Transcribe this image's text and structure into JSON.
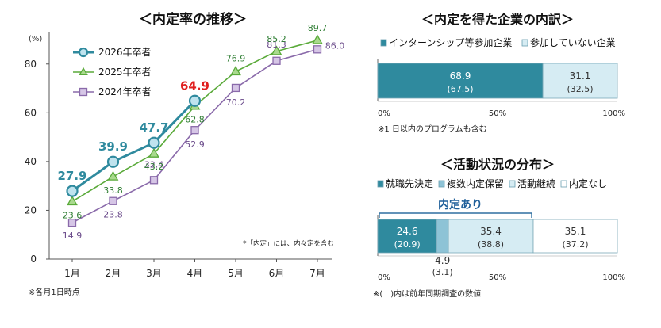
{
  "chart_data": [
    {
      "type": "line",
      "title": "＜内定率の推移＞",
      "y_unit": "(%)",
      "ylim": [
        0,
        90
      ],
      "yticks": [
        0,
        20,
        40,
        60,
        80
      ],
      "grid": false,
      "legend_position": "top-left",
      "categories": [
        "1月",
        "2月",
        "3月",
        "4月",
        "5月",
        "6月",
        "7月"
      ],
      "series": [
        {
          "name": "2026年卒者",
          "color": "#2f8a9e",
          "marker": "circle",
          "label_color": "#2f8a9e",
          "last_label_color": "#e02020",
          "values": [
            27.9,
            39.9,
            47.7,
            64.9,
            null,
            null,
            null
          ]
        },
        {
          "name": "2025年卒者",
          "color": "#5aaa3a",
          "marker": "triangle",
          "label_color": "#2e7d32",
          "values": [
            23.6,
            33.8,
            43.2,
            62.8,
            76.9,
            85.2,
            89.7
          ]
        },
        {
          "name": "2024年卒者",
          "color": "#8a6aaa",
          "marker": "square",
          "label_color": "#6a4a8a",
          "values": [
            14.9,
            23.8,
            32.4,
            52.9,
            70.2,
            81.3,
            86.0
          ]
        }
      ],
      "annotation": "*「内定」には、内々定を含む",
      "footnote": "※各月1日時点"
    },
    {
      "type": "bar",
      "orientation": "horizontal-stacked",
      "title": "＜内定を得た企業の内訳＞",
      "xlim": [
        0,
        100
      ],
      "xticks": [
        "0%",
        "50%",
        "100%"
      ],
      "legend_position": "top",
      "segments": [
        {
          "name": "インターンシップ等参加企業",
          "value": 68.9,
          "prev": "(67.5)",
          "color": "#2f8a9e",
          "text_color": "#ffffff"
        },
        {
          "name": "参加していない企業",
          "value": 31.1,
          "prev": "(32.5)",
          "color": "#d6ecf3",
          "text_color": "#333333"
        }
      ],
      "footnote": "※1 日以内のプログラムも含む"
    },
    {
      "type": "bar",
      "orientation": "horizontal-stacked",
      "title": "＜活動状況の分布＞",
      "xlim": [
        0,
        100
      ],
      "xticks": [
        "0%",
        "50%",
        "100%"
      ],
      "legend_position": "top",
      "bracket_label": "内定あり",
      "segments": [
        {
          "name": "就職先決定",
          "value": 24.6,
          "prev": "(20.9)",
          "color": "#2f8a9e",
          "text_color": "#ffffff"
        },
        {
          "name": "複数内定保留",
          "value": 4.9,
          "prev": "(3.1)",
          "color": "#8ec3d6",
          "text_color": "#333333"
        },
        {
          "name": "活動継続",
          "value": 35.4,
          "prev": "(38.8)",
          "color": "#d6ecf3",
          "text_color": "#333333"
        },
        {
          "name": "内定なし",
          "value": 35.1,
          "prev": "(37.2)",
          "color": "#ffffff",
          "text_color": "#333333"
        }
      ],
      "footnote": "※(　)内は前年同期調査の数値"
    }
  ]
}
